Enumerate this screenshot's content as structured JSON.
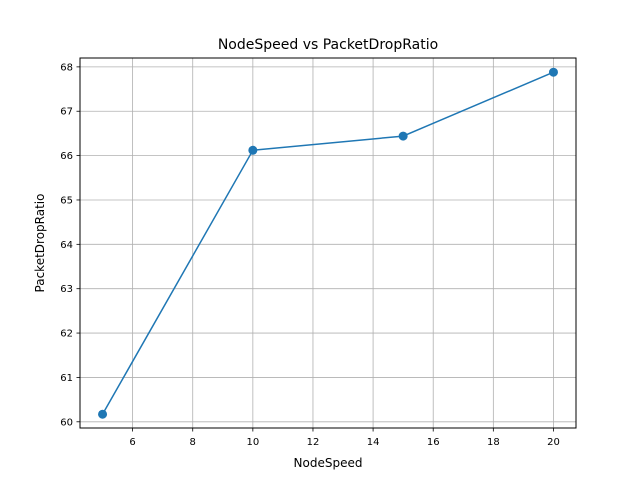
{
  "chart_data": {
    "type": "line",
    "title": "NodeSpeed vs PacketDropRatio",
    "xlabel": "NodeSpeed",
    "ylabel": "PacketDropRatio",
    "x": [
      5,
      10,
      15,
      20
    ],
    "series": [
      {
        "values": [
          60.17,
          66.12,
          66.44,
          67.88
        ]
      }
    ],
    "xlim": [
      4.25,
      20.75
    ],
    "ylim": [
      59.86,
      68.2
    ],
    "xticks": [
      6,
      8,
      10,
      12,
      14,
      16,
      18,
      20
    ],
    "yticks": [
      60,
      61,
      62,
      63,
      64,
      65,
      66,
      67,
      68
    ],
    "grid": true,
    "markers": true,
    "line_color": "#1f77b4",
    "grid_color": "#b0b0b0"
  }
}
